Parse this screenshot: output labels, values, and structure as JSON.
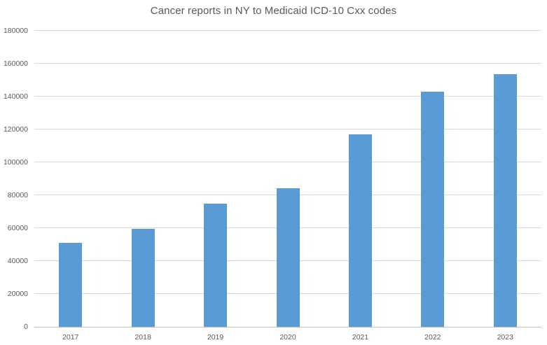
{
  "chart_data": {
    "type": "bar",
    "title": "Cancer reports in NY to Medicaid ICD-10 Cxx codes",
    "categories": [
      "2017",
      "2018",
      "2019",
      "2020",
      "2021",
      "2022",
      "2023"
    ],
    "values": [
      51000,
      59500,
      75000,
      84000,
      117000,
      143000,
      153500
    ],
    "xlabel": "",
    "ylabel": "",
    "ylim": [
      0,
      180000
    ],
    "ytick_step": 20000,
    "ytick_labels": [
      "0",
      "20000",
      "40000",
      "60000",
      "80000",
      "100000",
      "120000",
      "140000",
      "160000",
      "180000"
    ],
    "grid": true,
    "legend": false,
    "colors": {
      "bar_fill": "#5b9bd5",
      "gridline": "#d9d9d9",
      "axis_line": "#bfbfbf",
      "title_text": "#595959",
      "tick_text": "#595959",
      "background": "#ffffff"
    }
  }
}
